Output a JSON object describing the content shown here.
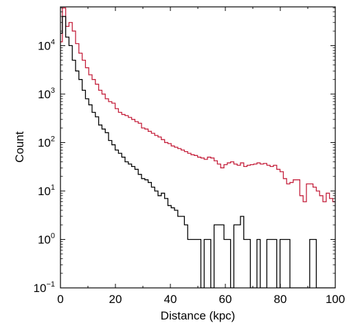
{
  "chart_data": {
    "type": "step",
    "xlabel": "Distance (kpc)",
    "ylabel": "Count",
    "xlim": [
      0,
      100
    ],
    "ylim_log10": [
      -1,
      4.8
    ],
    "y_scale": "log",
    "grid": false,
    "x_ticks": [
      "0",
      "20",
      "40",
      "60",
      "80",
      "100"
    ],
    "y_ticks": [
      {
        "base": "10",
        "exp": "−1"
      },
      {
        "base": "10",
        "exp": "0"
      },
      {
        "base": "10",
        "exp": "1"
      },
      {
        "base": "10",
        "exp": "2"
      },
      {
        "base": "10",
        "exp": "3"
      },
      {
        "base": "10",
        "exp": "4"
      }
    ],
    "series": [
      {
        "color": "#c41e3a",
        "x": [
          0,
          0.7,
          1.9,
          3.1,
          4.3,
          5.5,
          6.7,
          7.9,
          9.1,
          10.3,
          11.5,
          12.7,
          13.9,
          15.1,
          16.3,
          17.5,
          18.7,
          19.9,
          21.1,
          22.3,
          23.5,
          24.7,
          25.9,
          27.1,
          28.3,
          29.5,
          30.7,
          31.9,
          33.1,
          34.3,
          35.5,
          36.7,
          37.9,
          39.1,
          40.3,
          41.5,
          42.7,
          43.9,
          45.1,
          46.3,
          47.5,
          48.7,
          49.9,
          51.1,
          52.3,
          53.5,
          54.7,
          55.9,
          57.1,
          58.3,
          59.5,
          60.7,
          61.9,
          63.1,
          64.3,
          65.5,
          66.7,
          67.9,
          69.1,
          70.3,
          71.5,
          72.7,
          73.9,
          75.1,
          76.3,
          77.5,
          78.7,
          79.9,
          81.1,
          82.3,
          83.5,
          84.7,
          85.9,
          87.1,
          88.3,
          89.5,
          90.7,
          91.9,
          93.1,
          94.3,
          95.5,
          96.7,
          97.9,
          99.1
        ],
        "counts": [
          12000,
          60000,
          25000,
          30000,
          20000,
          11000,
          7000,
          5000,
          3500,
          2500,
          2000,
          1600,
          1200,
          1000,
          800,
          700,
          650,
          500,
          420,
          380,
          360,
          330,
          300,
          270,
          250,
          200,
          190,
          170,
          155,
          140,
          130,
          115,
          100,
          95,
          85,
          80,
          75,
          70,
          65,
          60,
          56,
          54,
          50,
          48,
          45,
          50,
          48,
          42,
          36,
          30,
          35,
          38,
          40,
          36,
          34,
          38,
          32,
          34,
          35,
          36,
          38,
          36,
          37,
          34,
          32,
          34,
          28,
          25,
          18,
          14,
          15,
          17,
          17,
          8,
          6,
          14,
          14,
          12,
          10,
          8,
          6,
          9,
          7,
          6
        ]
      },
      {
        "color": "#000000",
        "x": [
          0,
          0.7,
          1.9,
          3.1,
          4.3,
          5.5,
          6.7,
          7.9,
          9.1,
          10.3,
          11.5,
          12.7,
          13.9,
          15.1,
          16.3,
          17.5,
          18.7,
          19.9,
          21.1,
          22.3,
          23.5,
          24.7,
          25.9,
          27.1,
          28.3,
          29.5,
          30.7,
          31.9,
          33.1,
          34.3,
          35.5,
          36.7,
          37.9,
          39.1,
          40.3,
          41.5,
          42.7,
          43.9,
          45.1,
          46.3,
          47.5,
          48.7,
          49.9,
          51.1,
          52.3,
          53.5,
          54.7,
          55.9,
          57.1,
          58.3,
          59.5,
          60.7,
          61.9,
          63.1,
          64.3,
          65.5,
          66.7,
          67.9,
          69.1,
          70.3,
          71.5,
          72.7,
          73.9,
          75.1,
          76.3,
          77.5,
          78.7,
          79.9,
          81.1,
          82.3,
          83.5,
          84.7,
          85.9,
          87.1,
          88.3,
          89.5,
          90.7,
          91.9,
          93.1,
          94.3,
          95.5,
          96.7,
          97.9,
          99.1
        ],
        "counts": [
          18000,
          40000,
          15000,
          10000,
          5000,
          3000,
          2000,
          1200,
          800,
          600,
          420,
          340,
          230,
          190,
          160,
          110,
          90,
          70,
          60,
          50,
          40,
          36,
          32,
          28,
          22,
          18,
          17,
          15,
          12,
          10,
          8,
          9,
          7,
          5,
          4.5,
          4,
          3,
          3,
          2,
          1,
          1,
          1,
          1,
          0.1,
          1,
          1,
          0.1,
          2,
          2,
          2,
          1,
          1,
          0.1,
          2,
          2,
          3,
          1,
          1,
          0.1,
          0.1,
          1,
          0.1,
          0.1,
          1,
          1,
          1,
          0.1,
          1,
          1,
          1,
          0.1,
          0.1,
          0.1,
          0.1,
          0.1,
          0.1,
          1,
          1,
          0.1,
          0.1,
          0.1,
          0.1,
          0.1,
          0.1
        ]
      }
    ]
  }
}
